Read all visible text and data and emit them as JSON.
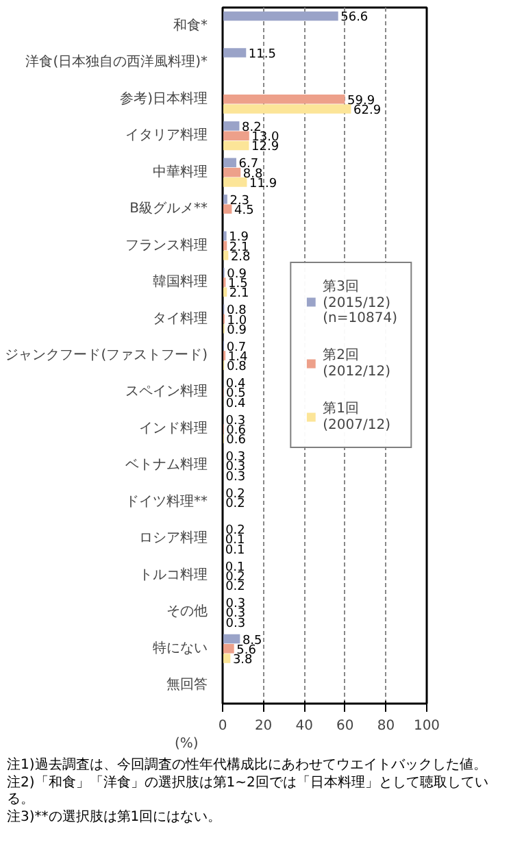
{
  "chart_data": {
    "type": "bar",
    "orientation": "horizontal",
    "xlabel": "(%)",
    "categories": [
      "和食*",
      "洋食(日本独自の西洋風料理)*",
      "参考)日本料理",
      "イタリア料理",
      "中華料理",
      "B級グルメ**",
      "フランス料理",
      "韓国料理",
      "タイ料理",
      "ジャンクフード(ファストフード)",
      "スペイン料理",
      "インド料理",
      "ベトナム料理",
      "ドイツ料理**",
      "ロシア料理",
      "トルコ料理",
      "その他",
      "特にない",
      "無回答"
    ],
    "series": [
      {
        "name": "第3回\n(2015/12)\n(n=10874)",
        "color": "#9aa3c8",
        "values": [
          56.6,
          11.5,
          null,
          8.2,
          6.7,
          2.3,
          1.9,
          0.9,
          0.8,
          0.7,
          0.4,
          0.3,
          0.3,
          0.2,
          0.2,
          0.1,
          0.3,
          8.5,
          null
        ],
        "value_labels": [
          "56.6",
          "11.5",
          null,
          "8.2",
          "6.7",
          "2.3",
          "1.9",
          "0.9",
          "0.8",
          "0.7",
          "0.4",
          "0.3",
          "0.3",
          "0.2",
          "0.2",
          "0.1",
          "0.3",
          "8.5",
          null
        ]
      },
      {
        "name": "第2回\n(2012/12)",
        "color": "#eda08a",
        "values": [
          null,
          null,
          59.9,
          13.0,
          8.8,
          4.5,
          2.1,
          1.5,
          1.0,
          1.4,
          0.5,
          0.6,
          0.3,
          0.2,
          0.1,
          0.2,
          0.3,
          5.6,
          null
        ],
        "value_labels": [
          null,
          null,
          "59.9",
          "13.0",
          "8.8",
          "4.5",
          "2.1",
          "1.5",
          "1.0",
          "1.4",
          "0.5",
          "0.6",
          "0.3",
          "0.2",
          "0.1",
          "0.2",
          "0.3",
          "5.6",
          null
        ]
      },
      {
        "name": "第1回\n(2007/12)",
        "color": "#fce598",
        "values": [
          null,
          null,
          62.9,
          12.9,
          11.9,
          null,
          2.8,
          2.1,
          0.9,
          0.8,
          0.4,
          0.6,
          0.3,
          null,
          0.1,
          0.2,
          0.3,
          3.8,
          null
        ],
        "value_labels": [
          null,
          null,
          "62.9",
          "12.9",
          "11.9",
          null,
          "2.8",
          "2.1",
          "0.9",
          "0.8",
          "0.4",
          "0.6",
          "0.3",
          null,
          "0.1",
          "0.2",
          "0.3",
          "3.8",
          null
        ]
      }
    ],
    "xlim": [
      0,
      100
    ],
    "xticks": [
      0,
      20,
      40,
      60,
      80,
      100
    ],
    "grid": "x",
    "legend": "right",
    "annotations": [
      "注1)過去調査は、今回調査の性年代構成比にあわせてウエイトバックした値。",
      "注2)「和食」「洋食」の選択肢は第1~2回では「日本料理」として聴取している。",
      "注3)**の選択肢は第1回にはない。"
    ]
  }
}
